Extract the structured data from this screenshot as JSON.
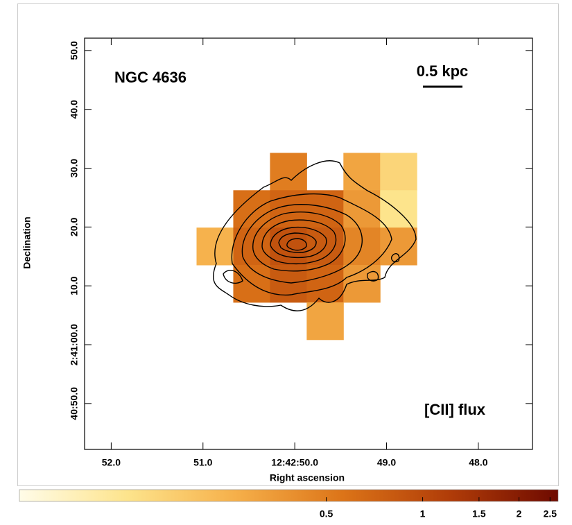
{
  "chart_data": {
    "type": "image",
    "title": "NGC 4636",
    "annotations": [
      "0.5 kpc",
      "[CII] flux"
    ],
    "xlabel": "Right ascension",
    "ylabel": "Declination",
    "xlim": [
      52.29,
      47.41
    ],
    "xticks": [
      {
        "value": 52,
        "label": "52.0"
      },
      {
        "value": 51,
        "label": "51.0"
      },
      {
        "value": 50,
        "label": "12:42:50.0"
      },
      {
        "value": 49,
        "label": "49.0"
      },
      {
        "value": 48,
        "label": "48.0"
      }
    ],
    "ylim": [
      -17.8,
      52.1
    ],
    "yticks": [
      {
        "value": 50,
        "label": "50.0"
      },
      {
        "value": 40,
        "label": "40.0"
      },
      {
        "value": 30,
        "label": "30.0"
      },
      {
        "value": 20,
        "label": "20.0"
      },
      {
        "value": 10,
        "label": "10.0"
      },
      {
        "value": 0,
        "label": "2:41:00.0"
      },
      {
        "value": -10,
        "label": "40:50.0"
      }
    ],
    "image": {
      "x0": 51.07,
      "dx": -0.4,
      "y0": 32.6,
      "dy": -6.35,
      "values": [
        [
          null,
          null,
          0.5,
          null,
          0.3,
          0.15
        ],
        [
          null,
          0.6,
          0.7,
          0.7,
          0.35,
          0.12
        ],
        [
          0.25,
          0.7,
          0.9,
          0.8,
          0.45,
          0.35
        ],
        [
          null,
          0.6,
          0.8,
          0.7,
          0.35,
          null
        ],
        [
          null,
          null,
          null,
          0.3,
          null,
          null
        ]
      ]
    },
    "clim": [
      0.055,
      2.65
    ],
    "clog": true,
    "colormap": [
      "#fffce8",
      "#fde48c",
      "#f6b04a",
      "#dc7418",
      "#b03c08",
      "#6e0a00"
    ],
    "cticks": [
      0.5,
      1,
      1.5,
      2,
      2.5
    ]
  }
}
